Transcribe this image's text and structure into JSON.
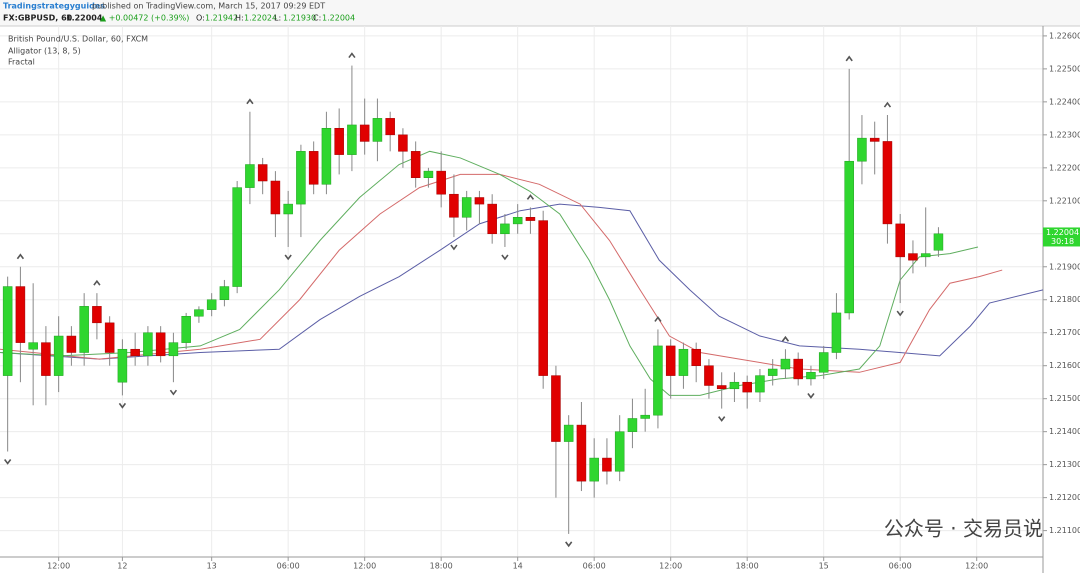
{
  "header": {
    "author": "Tradingstrategyguides",
    "published": "published on TradingView.com, March 15, 2017 09:29 EDT",
    "symbol": "FX:GBPUSD, 60",
    "price": "1.22004",
    "change": "▲ +0.00472 (+0.39%)",
    "ohlc": [
      "O:",
      "1.21942",
      "H:",
      "1.22024",
      "L:",
      "1.21930",
      "C:",
      "1.22004"
    ]
  },
  "legend": [
    "British Pound/U.S. Dollar, 60, FXCM",
    "Alligator (13, 8, 5)",
    "Fractal"
  ],
  "watermark": "公众号 · 交易员说",
  "chart_data": {
    "type": "candlestick",
    "up_color": "#2fd62f",
    "down_color": "#e00000",
    "ylim": [
      1.2102,
      1.2263
    ],
    "yticks": [
      {
        "value": 1.226,
        "label": "1.22600"
      },
      {
        "value": 1.225,
        "label": "1.22500"
      },
      {
        "value": 1.224,
        "label": "1.22400"
      },
      {
        "value": 1.223,
        "label": "1.22300"
      },
      {
        "value": 1.222,
        "label": "1.22200"
      },
      {
        "value": 1.221,
        "label": "1.22100"
      },
      {
        "value": 1.22,
        "label": "1.22000"
      },
      {
        "value": 1.219,
        "label": "1.21900"
      },
      {
        "value": 1.218,
        "label": "1.21800"
      },
      {
        "value": 1.217,
        "label": "1.21700"
      },
      {
        "value": 1.216,
        "label": "1.21600"
      },
      {
        "value": 1.215,
        "label": "1.21500"
      },
      {
        "value": 1.214,
        "label": "1.21400"
      },
      {
        "value": 1.213,
        "label": "1.21300"
      },
      {
        "value": 1.212,
        "label": "1.21200"
      },
      {
        "value": 1.211,
        "label": "1.21100"
      }
    ],
    "xlim": [
      -0.6,
      81.2
    ],
    "xticks": [
      {
        "value": 4,
        "label": "12:00"
      },
      {
        "value": 9,
        "label": "12"
      },
      {
        "value": 16,
        "label": "13"
      },
      {
        "value": 22,
        "label": "06:00"
      },
      {
        "value": 28,
        "label": "12:00"
      },
      {
        "value": 34,
        "label": "18:00"
      },
      {
        "value": 40,
        "label": "14"
      },
      {
        "value": 46,
        "label": "06:00"
      },
      {
        "value": 52,
        "label": "12:00"
      },
      {
        "value": 58,
        "label": "18:00"
      },
      {
        "value": 64,
        "label": "15"
      },
      {
        "value": 70,
        "label": "06:00"
      },
      {
        "value": 76,
        "label": "12:00"
      }
    ],
    "grid": true,
    "last_price": {
      "value": 1.22004,
      "label": "1.22004"
    },
    "countdown": "30:18",
    "open": [
      1.2157,
      1.2184,
      1.2165,
      1.2167,
      1.2157,
      1.2169,
      1.2164,
      1.2178,
      1.2173,
      1.2155,
      1.2165,
      1.2163,
      1.217,
      1.2163,
      1.2167,
      1.2175,
      1.2177,
      1.218,
      1.2184,
      1.2214,
      1.2221,
      1.2216,
      1.2206,
      1.2209,
      1.2225,
      1.2215,
      1.2232,
      1.2224,
      1.2233,
      1.2228,
      1.2235,
      1.223,
      1.2225,
      1.2217,
      1.2219,
      1.2212,
      1.2205,
      1.2211,
      1.2209,
      1.22,
      1.2203,
      1.2205,
      1.2204,
      1.2157,
      1.2137,
      1.2142,
      1.2125,
      1.2132,
      1.2128,
      1.214,
      1.2144,
      1.2145,
      1.2166,
      1.2157,
      1.2165,
      1.216,
      1.2154,
      1.2153,
      1.2155,
      1.2152,
      1.2157,
      1.2159,
      1.2162,
      1.2156,
      1.2158,
      1.2164,
      1.2176,
      1.2222,
      1.2229,
      1.2228,
      1.2203,
      1.2194,
      1.2193,
      1.2195
    ],
    "high": [
      1.2187,
      1.219,
      1.2185,
      1.2172,
      1.2175,
      1.2172,
      1.2182,
      1.2182,
      1.2175,
      1.2168,
      1.217,
      1.2172,
      1.2172,
      1.217,
      1.2176,
      1.2178,
      1.2182,
      1.2186,
      1.2216,
      1.2237,
      1.2223,
      1.2219,
      1.2213,
      1.2227,
      1.2228,
      1.2237,
      1.2238,
      1.2251,
      1.2241,
      1.2241,
      1.2237,
      1.2232,
      1.2228,
      1.222,
      1.2225,
      1.2218,
      1.2213,
      1.2213,
      1.2212,
      1.2206,
      1.2209,
      1.2208,
      1.2207,
      1.216,
      1.2145,
      1.2149,
      1.2138,
      1.2138,
      1.2145,
      1.215,
      1.2153,
      1.2171,
      1.2168,
      1.2167,
      1.2167,
      1.2162,
      1.2158,
      1.2158,
      1.2157,
      1.2159,
      1.2162,
      1.2165,
      1.2164,
      1.216,
      1.2166,
      1.2182,
      1.225,
      1.2236,
      1.2234,
      1.2236,
      1.2206,
      1.2198,
      1.2208,
      1.2202
    ],
    "low": [
      1.2134,
      1.2155,
      1.2148,
      1.2148,
      1.2152,
      1.216,
      1.216,
      1.2168,
      1.216,
      1.2151,
      1.216,
      1.216,
      1.2161,
      1.2155,
      1.2165,
      1.2173,
      1.2175,
      1.2178,
      1.2182,
      1.2209,
      1.2212,
      1.2199,
      1.2196,
      1.2199,
      1.2212,
      1.2212,
      1.2218,
      1.2219,
      1.2224,
      1.2222,
      1.2225,
      1.222,
      1.2214,
      1.2214,
      1.2208,
      1.2199,
      1.2201,
      1.2203,
      1.2197,
      1.2196,
      1.22,
      1.22,
      1.2153,
      1.212,
      1.2109,
      1.2122,
      1.212,
      1.2124,
      1.2125,
      1.2135,
      1.214,
      1.2141,
      1.215,
      1.2153,
      1.2155,
      1.215,
      1.2147,
      1.2149,
      1.2147,
      1.2149,
      1.2154,
      1.2156,
      1.2154,
      1.2154,
      1.2156,
      1.2162,
      1.2174,
      1.2215,
      1.2218,
      1.2197,
      1.2179,
      1.2188,
      1.219,
      1.2193
    ],
    "close": [
      1.2184,
      1.2167,
      1.2167,
      1.2157,
      1.2169,
      1.2164,
      1.2178,
      1.2173,
      1.2164,
      1.2165,
      1.2163,
      1.217,
      1.2163,
      1.2167,
      1.2175,
      1.2177,
      1.218,
      1.2184,
      1.2214,
      1.2221,
      1.2216,
      1.2206,
      1.2209,
      1.2225,
      1.2215,
      1.2232,
      1.2224,
      1.2233,
      1.2228,
      1.2235,
      1.223,
      1.2225,
      1.2217,
      1.2219,
      1.2212,
      1.2205,
      1.2211,
      1.2209,
      1.22,
      1.2203,
      1.2205,
      1.2204,
      1.2157,
      1.2137,
      1.2142,
      1.2125,
      1.2132,
      1.2128,
      1.214,
      1.2144,
      1.2145,
      1.2166,
      1.2157,
      1.2165,
      1.216,
      1.2154,
      1.2153,
      1.2155,
      1.2152,
      1.2157,
      1.2159,
      1.2162,
      1.2156,
      1.2158,
      1.2164,
      1.2176,
      1.2222,
      1.2229,
      1.2228,
      1.2203,
      1.2193,
      1.2192,
      1.2194,
      1.22
    ],
    "lines": [
      {
        "color": "#5b5ea6",
        "x": [
          -0.6,
          7.2,
          15.1,
          21.3,
          24.5,
          27.6,
          30.7,
          33.9,
          37.0,
          40.2,
          43.3,
          46.4,
          48.8,
          51.1,
          53.5,
          55.8,
          59.0,
          62.1,
          66.8,
          73.1,
          75.5,
          77.0,
          81.2
        ],
        "values": [
          1.2164,
          1.2162,
          1.2164,
          1.2165,
          1.2174,
          1.2181,
          1.2187,
          1.2195,
          1.2203,
          1.2207,
          1.2209,
          1.2208,
          1.2207,
          1.2192,
          1.2183,
          1.2175,
          1.2169,
          1.2166,
          1.2165,
          1.2163,
          1.2172,
          1.2179,
          1.2183
        ]
      },
      {
        "color": "#d46a6a",
        "x": [
          -0.6,
          7.2,
          15.1,
          19.8,
          22.9,
          26.0,
          29.2,
          32.3,
          35.5,
          38.6,
          41.7,
          44.9,
          47.2,
          49.6,
          51.9,
          54.3,
          57.4,
          62.1,
          66.8,
          70.0,
          72.3,
          73.9,
          76.2,
          78.0
        ],
        "values": [
          1.2165,
          1.2162,
          1.2165,
          1.2168,
          1.218,
          1.2195,
          1.2206,
          1.2214,
          1.2218,
          1.2218,
          1.2215,
          1.2209,
          1.2198,
          1.2183,
          1.2169,
          1.2164,
          1.2162,
          1.2159,
          1.2158,
          1.2161,
          1.2177,
          1.2185,
          1.2187,
          1.2189
        ]
      },
      {
        "color": "#5fae5f",
        "x": [
          -0.6,
          4.1,
          9.6,
          15.1,
          18.2,
          21.3,
          24.5,
          27.6,
          30.7,
          33.1,
          35.5,
          38.6,
          40.9,
          43.3,
          45.6,
          47.2,
          48.8,
          50.4,
          51.9,
          54.3,
          57.4,
          60.5,
          63.7,
          66.8,
          68.4,
          70.0,
          71.5,
          73.9,
          76.1
        ],
        "values": [
          1.2164,
          1.2163,
          1.2164,
          1.2166,
          1.2171,
          1.2183,
          1.2198,
          1.2211,
          1.2221,
          1.2225,
          1.2223,
          1.2218,
          1.2213,
          1.2206,
          1.2192,
          1.218,
          1.2166,
          1.2156,
          1.2151,
          1.2151,
          1.2154,
          1.2156,
          1.2157,
          1.2159,
          1.2166,
          1.2186,
          1.2193,
          1.2194,
          1.2196
        ]
      }
    ],
    "fractal_up": [
      1,
      7,
      19,
      27,
      41,
      51,
      61,
      66,
      69
    ],
    "fractal_down": [
      0,
      9,
      13,
      22,
      35,
      39,
      44,
      56,
      63,
      70
    ]
  }
}
